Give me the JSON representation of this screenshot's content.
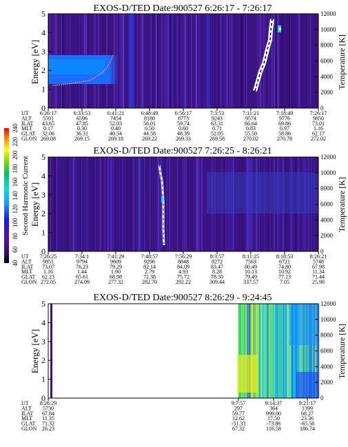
{
  "colors": {
    "background_dark": "#3a1380",
    "white": "#ffffff"
  },
  "colorbar": {
    "label": "Second Harmonic Current",
    "ticks": [
      "40",
      "60",
      "80",
      "100",
      "120",
      "140",
      "160",
      "180",
      "200",
      "220",
      "240"
    ]
  },
  "chart_data": [
    {
      "type": "heatmap",
      "title": "EXOS-D/TED   Date:900527  6:26:17 - 7:26:17",
      "ylabel": "Energy [eV]",
      "y2label": "Temperature [K]",
      "ylim": [
        0,
        5
      ],
      "y2lim": [
        0,
        12000
      ],
      "yticks": [
        "0",
        "1",
        "2",
        "3",
        "4",
        "5"
      ],
      "y2ticks": [
        "0",
        "2000",
        "4000",
        "6000",
        "8000",
        "10000",
        "12000"
      ],
      "row_labels": [
        "UT",
        "ALT",
        "ILAT",
        "MLT",
        "GLAT",
        "GLON"
      ],
      "columns": [
        [
          "6:26:17",
          "5591",
          "43.65",
          "0.17",
          "32.06",
          "269.08"
        ],
        [
          "6:33:53",
          "6596",
          "47.85",
          "0.30",
          "36.31",
          "269.15"
        ],
        [
          "6:41:21",
          "7454",
          "52.03",
          "0.40",
          "40.54",
          "269.18"
        ],
        [
          "6:48:49",
          "8180",
          "56.01",
          "0.50",
          "44.58",
          "269.22"
        ],
        [
          "6:56:17",
          "8773",
          "59.74",
          "0.60",
          "48.39",
          "269.33"
        ],
        [
          "7:3:53",
          "9243",
          "63.31",
          "0.71",
          "52.05",
          "269.58"
        ],
        [
          "7:11:21",
          "9574",
          "66.64",
          "0.83",
          "55.50",
          "270.02"
        ],
        [
          "7:18:49",
          "9776",
          "69.86",
          "0.97",
          "58.86",
          "270.78"
        ],
        [
          "7:26:17",
          "9850",
          "73.01",
          "1.16",
          "62.17",
          "272.02"
        ]
      ]
    },
    {
      "type": "heatmap",
      "title": "EXOS-D/TED   Date:900527  7:26:25 - 8:26:21",
      "ylabel": "Energy [eV]",
      "y2label": "Temperature [K]",
      "ylim": [
        0,
        5
      ],
      "y2lim": [
        0,
        12000
      ],
      "yticks": [
        "0",
        "1",
        "2",
        "3",
        "4",
        "5"
      ],
      "y2ticks": [
        "0",
        "2000",
        "4000",
        "6000",
        "8000",
        "10000",
        "12000"
      ],
      "row_labels": [
        "UT",
        "ALT",
        "ILAT",
        "MLT",
        "GLAT",
        "GLON"
      ],
      "columns": [
        [
          "7:26:25",
          "9851",
          "73.07",
          "1.16",
          "62.23",
          "272.05"
        ],
        [
          "7:34:1",
          "9794",
          "76.23",
          "1.44",
          "65.61",
          "274.09"
        ],
        [
          "7:41:29",
          "9609",
          "79.29",
          "1.90",
          "68.98",
          "277.32"
        ],
        [
          "7:48:57",
          "9296",
          "82.14",
          "2.79",
          "72.38",
          "282.70"
        ],
        [
          "7:56:29",
          "8848",
          "84.09",
          "4.93",
          "75.72",
          "292.22"
        ],
        [
          "8:3:57",
          "8272",
          "83.47",
          "8.28",
          "78.50",
          "309.44"
        ],
        [
          "8:11:25",
          "7563",
          "80.49",
          "10.13",
          "79.49",
          "337.57"
        ],
        [
          "8:18:53",
          "6721",
          "74.80",
          "10.92",
          "77.13",
          "7.05"
        ],
        [
          "8:26:21",
          "5748",
          "67.98",
          "11.34",
          "71.44",
          "25.98"
        ]
      ]
    },
    {
      "type": "heatmap",
      "title": "EXOS-D/TED   Date:900527  8:26:29 - 9:24:45",
      "ylabel": "Energy [eV]",
      "y2label": "Temperature [K]",
      "ylim": [
        0,
        5
      ],
      "y2lim": [
        0,
        12000
      ],
      "yticks": [
        "0",
        "1",
        "2",
        "3",
        "4",
        "5"
      ],
      "y2ticks": [
        "0",
        "2000",
        "4000",
        "6000",
        "8000",
        "10000",
        "12000"
      ],
      "row_labels": [
        "UT",
        "ALT",
        "ILAT",
        "MLT",
        "GLAT",
        "GLON"
      ],
      "columns": [
        [
          "8:26:29",
          "5730",
          "67.84",
          "11.35",
          "71.32",
          "26.23"
        ],
        [
          "9:7:57",
          "297",
          "59.77",
          "12.62",
          "-51.33",
          "67.32"
        ],
        [
          "9:14:37",
          "364",
          "999.00",
          "17.50",
          "-73.86",
          "116.58"
        ],
        [
          "9:21:17",
          "1399",
          "68.27",
          "23.36",
          "-65.50",
          "186.74"
        ]
      ]
    }
  ]
}
